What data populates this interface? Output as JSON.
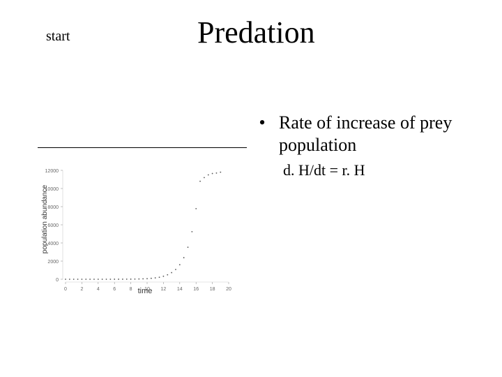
{
  "nav": {
    "start_label": "start"
  },
  "slide": {
    "title": "Predation",
    "bullet": "Rate of increase of prey population",
    "equation": "d. H/dt = r. H"
  },
  "chart_data": {
    "type": "scatter",
    "title": "",
    "xlabel": "time",
    "ylabel": "population abundance",
    "xlim": [
      0,
      20
    ],
    "ylim": [
      0,
      12000
    ],
    "x_ticks": [
      0,
      2,
      4,
      6,
      8,
      10,
      12,
      14,
      16,
      18,
      20
    ],
    "y_ticks": [
      0,
      2000,
      4000,
      6000,
      8000,
      10000,
      12000
    ],
    "y_tick_labels": [
      "0",
      "2000",
      "4000",
      "6000",
      "8000",
      "10000",
      "12000"
    ],
    "grid": false,
    "point_color": "#555555",
    "series": [
      {
        "x": [
          0,
          0.5,
          1,
          1.5,
          2,
          2.5,
          3,
          3.5,
          4,
          4.5,
          5,
          5.5,
          6,
          6.5,
          7,
          7.5,
          8,
          8.5,
          9,
          9.5,
          10,
          10.5,
          11,
          11.5,
          12,
          12.5,
          13,
          13.5,
          14,
          14.5,
          15,
          15.5,
          16,
          16.5,
          17,
          17.5,
          18,
          18.5,
          19
        ],
        "y": [
          0,
          0,
          0,
          0,
          0,
          0,
          0,
          0,
          1,
          1,
          1,
          2,
          3,
          4,
          6,
          9,
          14,
          21,
          31,
          46,
          68,
          101,
          150,
          222,
          330,
          490,
          727,
          1079,
          1602,
          2378,
          3530,
          5240,
          7779,
          10800,
          11200,
          11500,
          11650,
          11700,
          11800
        ]
      }
    ]
  }
}
